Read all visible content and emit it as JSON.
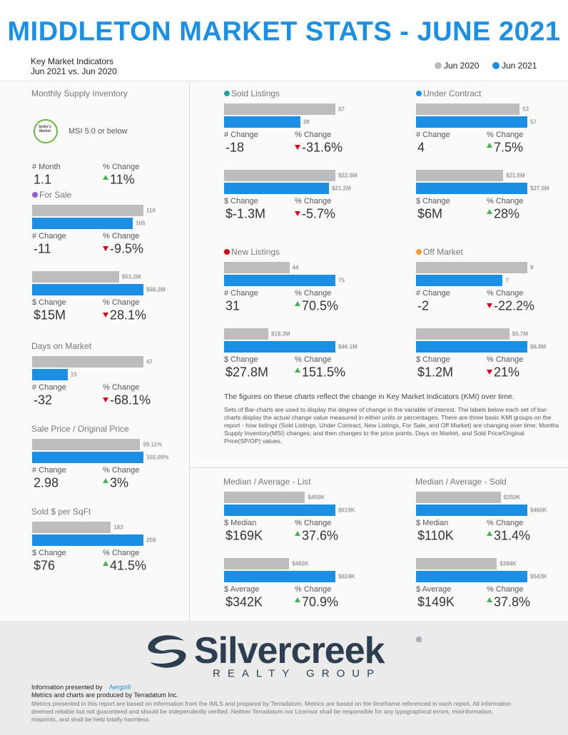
{
  "header": {
    "title": "MIDDLETON MARKET STATS - JUNE 2021",
    "subtitle": "Key Market Indicators",
    "comparison": "Jun 2021 vs. Jun 2020"
  },
  "legend": [
    {
      "name": "Jun 2020",
      "color": "#bdbdbd"
    },
    {
      "name": "Jun 2021",
      "color": "#1a8fe3"
    }
  ],
  "blocks": [
    {
      "title": "Monthly Supply Inventory",
      "badge": {
        "text": "Seller's Market",
        "note": "MSI 5.0 or below",
        "color": "#6cb33f"
      },
      "groups": [
        {
          "stats": [
            {
              "label": "# Month",
              "value": "1.1"
            },
            {
              "label": "% Change",
              "value": "11%",
              "trend": "up"
            }
          ]
        }
      ]
    },
    {
      "title": "For Sale",
      "dot": "#9b59d0",
      "groups": [
        {
          "values": [
            116,
            105
          ],
          "stats": [
            {
              "label": "# Change",
              "value": "-11"
            },
            {
              "label": "% Change",
              "value": "-9.5%",
              "trend": "down"
            }
          ]
        },
        {
          "values": [
            53200000,
            68200000
          ],
          "value_labels": [
            "$53.2M",
            "$68.2M"
          ],
          "stats": [
            {
              "label": "$ Change",
              "value": "$15M"
            },
            {
              "label": "% Change",
              "value": "28.1%",
              "trend": "down"
            }
          ]
        }
      ]
    },
    {
      "title": "Days on Market",
      "groups": [
        {
          "values": [
            47,
            15
          ],
          "stats": [
            {
              "label": "# Change",
              "value": "-32"
            },
            {
              "label": "% Change",
              "value": "-68.1%",
              "trend": "down"
            }
          ]
        }
      ]
    },
    {
      "title": "Sale Price / Original Price",
      "groups": [
        {
          "values": [
            99.11,
            102.09
          ],
          "value_labels": [
            "99.11%",
            "102.09%"
          ],
          "stats": [
            {
              "label": "# Change",
              "value": "2.98"
            },
            {
              "label": "% Change",
              "value": "3%",
              "trend": "up"
            }
          ]
        }
      ]
    },
    {
      "title": "Sold $ per SqFt",
      "groups": [
        {
          "values": [
            183,
            259
          ],
          "stats": [
            {
              "label": "$ Change",
              "value": "$76"
            },
            {
              "label": "% Change",
              "value": "41.5%",
              "trend": "up"
            }
          ]
        }
      ]
    },
    {
      "title": "Sold Listings",
      "dot": "#2aa198",
      "groups": [
        {
          "values": [
            57,
            39
          ],
          "stats": [
            {
              "label": "# Change",
              "value": "-18"
            },
            {
              "label": "% Change",
              "value": "-31.6%",
              "trend": "down"
            }
          ]
        },
        {
          "values": [
            22500000,
            21200000
          ],
          "value_labels": [
            "$22.5M",
            "$21.2M"
          ],
          "stats": [
            {
              "label": "$ Change",
              "value": "$-1.3M"
            },
            {
              "label": "% Change",
              "value": "-5.7%",
              "trend": "down"
            }
          ]
        }
      ]
    },
    {
      "title": "Under Contract",
      "dot": "#1a8fe3",
      "groups": [
        {
          "values": [
            53,
            57
          ],
          "stats": [
            {
              "label": "# Change",
              "value": "4"
            },
            {
              "label": "% Change",
              "value": "7.5%",
              "trend": "up"
            }
          ]
        },
        {
          "values": [
            21500000,
            27500000
          ],
          "value_labels": [
            "$21.5M",
            "$27.5M"
          ],
          "stats": [
            {
              "label": "$ Change",
              "value": "$6M"
            },
            {
              "label": "% Change",
              "value": "28%",
              "trend": "up"
            }
          ]
        }
      ]
    },
    {
      "title": "New Listings",
      "dot": "#d0021b",
      "groups": [
        {
          "values": [
            44,
            75
          ],
          "stats": [
            {
              "label": "# Change",
              "value": "31"
            },
            {
              "label": "% Change",
              "value": "70.5%",
              "trend": "up"
            }
          ]
        },
        {
          "values": [
            18300000,
            46100000
          ],
          "value_labels": [
            "$18.3M",
            "$46.1M"
          ],
          "stats": [
            {
              "label": "$ Change",
              "value": "$27.8M"
            },
            {
              "label": "% Change",
              "value": "151.5%",
              "trend": "up"
            }
          ]
        }
      ]
    },
    {
      "title": "Off Market",
      "dot": "#f39c32",
      "groups": [
        {
          "values": [
            9,
            7
          ],
          "stats": [
            {
              "label": "# Change",
              "value": "-2"
            },
            {
              "label": "% Change",
              "value": "-22.2%",
              "trend": "down"
            }
          ]
        },
        {
          "values": [
            5700000,
            6800000
          ],
          "value_labels": [
            "$5.7M",
            "$6.8M"
          ],
          "stats": [
            {
              "label": "$ Change",
              "value": "$1.2M"
            },
            {
              "label": "% Change",
              "value": "21%",
              "trend": "down"
            }
          ]
        }
      ]
    },
    {
      "title": "Median / Average - List",
      "groups": [
        {
          "values": [
            450000,
            619000
          ],
          "value_labels": [
            "$450K",
            "$619K"
          ],
          "stats": [
            {
              "label": "$ Median",
              "value": "$169K"
            },
            {
              "label": "% Change",
              "value": "37.6%",
              "trend": "up"
            }
          ]
        },
        {
          "values": [
            482000,
            824000
          ],
          "value_labels": [
            "$482K",
            "$824K"
          ],
          "stats": [
            {
              "label": "$ Average",
              "value": "$342K"
            },
            {
              "label": "% Change",
              "value": "70.9%",
              "trend": "up"
            }
          ]
        }
      ]
    },
    {
      "title": "Median / Average - Sold",
      "groups": [
        {
          "values": [
            350000,
            460000
          ],
          "value_labels": [
            "$350K",
            "$460K"
          ],
          "stats": [
            {
              "label": "$ Median",
              "value": "$110K"
            },
            {
              "label": "% Change",
              "value": "31.4%",
              "trend": "up"
            }
          ]
        },
        {
          "values": [
            394000,
            543000
          ],
          "value_labels": [
            "$394K",
            "$543K"
          ],
          "stats": [
            {
              "label": "$ Average",
              "value": "$149K"
            },
            {
              "label": "% Change",
              "value": "37.8%",
              "trend": "up"
            }
          ]
        }
      ]
    }
  ],
  "note": {
    "heading": "The figures on these charts reflect the change in Key Market Indicators (KMI) over time.",
    "body": "Sets of Bar-charts are used to display the degree of change in the variable of interest. The labels below each set of bar-charts display the actual change value measured in either units or percentages. There are three basic KMI groups on the report - how listings (Sold Listings, Under Contract, New Listings, For Sale, and Off Market) are changing over time; Months Supply Inventory(MSI) changes; and then changes to the price points, Days on Market, and Sold Price/Original Price(SP/OP) values."
  },
  "logo": {
    "name": "Silvercreek",
    "mark": "®",
    "tagline": "REALTY GROUP"
  },
  "footer": {
    "presented_by": "Information presented by",
    "presenter": "Aergo®",
    "produced_by": "Metrics and charts are produced by Terradatum Inc.",
    "disclaimer": "Metrics presented in this report are based on information from the IMLS and prepared by Terradatum. Metrics are based on the timeframe referenced in each report. All information deemed reliable but not guaranteed and should be independently verified. Neither Terradatum nor Licensor shall be responsible for any typographical errors, misinformation, misprints, and shall be held totally harmless."
  }
}
